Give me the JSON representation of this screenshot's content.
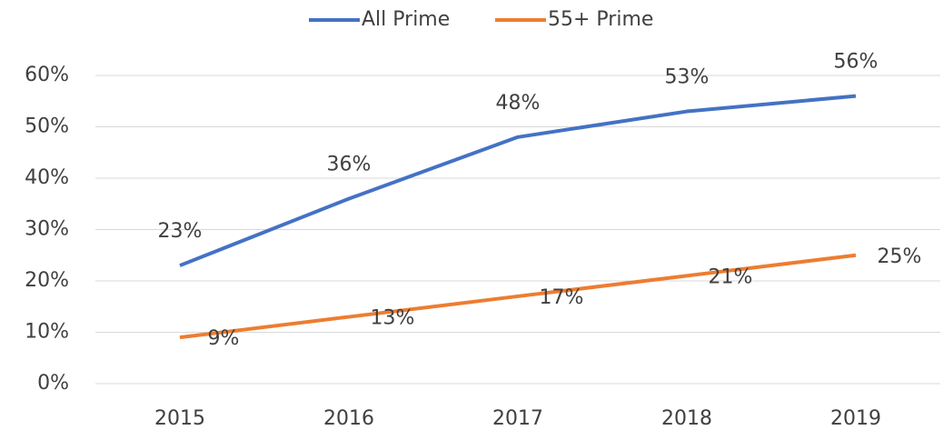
{
  "chart_data": {
    "type": "line",
    "categories": [
      "2015",
      "2016",
      "2017",
      "2018",
      "2019"
    ],
    "series": [
      {
        "name": "All Prime",
        "color": "#4472c4",
        "values": [
          23,
          36,
          48,
          53,
          56
        ],
        "value_labels": [
          "23%",
          "36%",
          "48%",
          "53%",
          "56%"
        ],
        "label_position": "above"
      },
      {
        "name": "55+ Prime",
        "color": "#ed7d31",
        "values": [
          9,
          13,
          17,
          21,
          25
        ],
        "value_labels": [
          "9%",
          "13%",
          "17%",
          "21%",
          "25%"
        ],
        "label_position": "right"
      }
    ],
    "ylim": [
      0,
      60
    ],
    "yticks": [
      {
        "value": 0,
        "label": "0%"
      },
      {
        "value": 10,
        "label": "10%"
      },
      {
        "value": 20,
        "label": "20%"
      },
      {
        "value": 30,
        "label": "30%"
      },
      {
        "value": 40,
        "label": "40%"
      },
      {
        "value": 50,
        "label": "50%"
      },
      {
        "value": 60,
        "label": "60%"
      }
    ],
    "grid": true,
    "legend": "top"
  }
}
